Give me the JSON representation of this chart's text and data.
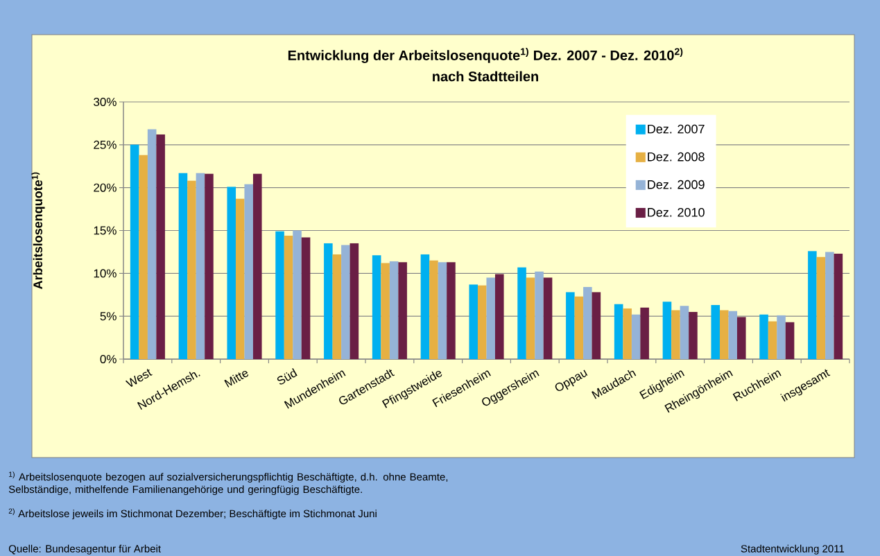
{
  "chart_data": {
    "type": "bar",
    "title": "Entwicklung der Arbeitslosenquote$^{1)}$ Dez. 2007 - Dez. 2010$^{2)}$",
    "subtitle": "nach Stadtteilen",
    "ylabel": "Arbeitslosenquote$^{1)}$",
    "categories": [
      "West",
      "Nord-Hemsh.",
      "Mitte",
      "Süd",
      "Mundenheim",
      "Gartenstadt",
      "Pfingstweide",
      "Friesenheim",
      "Oggersheim",
      "Oppau",
      "Maudach",
      "Edigheim",
      "Rheingönheim",
      "Ruchheim",
      "insgesamt"
    ],
    "series": [
      {
        "name": "Dez. 2007",
        "color": "#00b0f0",
        "values": [
          25.0,
          21.7,
          20.1,
          14.9,
          13.5,
          12.1,
          12.2,
          8.7,
          10.7,
          7.8,
          6.4,
          6.7,
          6.3,
          5.2,
          12.6
        ]
      },
      {
        "name": "Dez. 2008",
        "color": "#e6b043",
        "values": [
          23.8,
          20.8,
          18.7,
          14.4,
          12.2,
          11.2,
          11.5,
          8.6,
          9.5,
          7.3,
          5.9,
          5.7,
          5.7,
          4.4,
          11.9
        ]
      },
      {
        "name": "Dez. 2009",
        "color": "#95b3d7",
        "values": [
          26.8,
          21.7,
          20.4,
          15.0,
          13.3,
          11.4,
          11.3,
          9.5,
          10.2,
          8.4,
          5.2,
          6.2,
          5.6,
          5.1,
          12.5
        ]
      },
      {
        "name": "Dez. 2010",
        "color": "#6a1f45",
        "values": [
          26.2,
          21.6,
          21.6,
          14.2,
          13.5,
          11.3,
          11.3,
          9.9,
          9.5,
          7.8,
          6.0,
          5.5,
          4.9,
          4.3,
          12.3
        ]
      }
    ],
    "ylim": [
      0,
      30
    ],
    "yticks": [
      {
        "value": 0,
        "label": "0%"
      },
      {
        "value": 5,
        "label": "5%"
      },
      {
        "value": 10,
        "label": "10%"
      },
      {
        "value": 15,
        "label": "15%"
      },
      {
        "value": 20,
        "label": "20%"
      },
      {
        "value": 25,
        "label": "25%"
      },
      {
        "value": 30,
        "label": "30%"
      }
    ],
    "grid": "y",
    "legend": "top right",
    "annotations": [
      "$^{1)}$ Arbeitslosenquote bezogen auf sozialversicherungspflichtig Beschäftigte, d.h. ohne Beamte, Selbständige, mithelfende Familienangehörige und geringfügig Beschäftigte.",
      "$^{2)}$ Arbeitslose jeweils im Stichmonat Dezember; Beschäftigte im Stichmonat Juni",
      "Quelle: Bundesagentur für Arbeit",
      "Stadtentwicklung 2011"
    ]
  }
}
